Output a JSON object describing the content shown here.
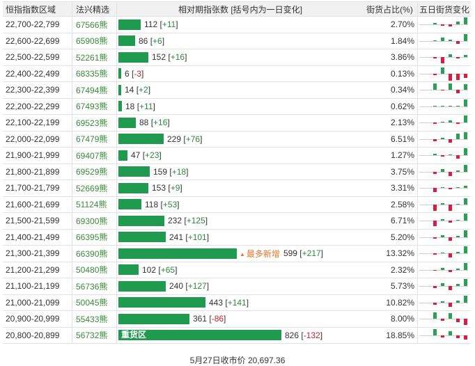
{
  "colors": {
    "bar": "#1f9a4f",
    "positive": "#2a8a3a",
    "negative": "#c0262d",
    "spark_up": "#2aa052",
    "spark_down": "#d81e3c",
    "hint": "#e9742b"
  },
  "header": {
    "range": "恒指指数区域",
    "code": "法兴精选",
    "bar": "相对期指张数 [括号内为一日变化]",
    "pct": "街货占比(%)",
    "spark": "五日街货变化"
  },
  "max_value": 826,
  "rows": [
    {
      "range": "22,700-22,799",
      "code": "67566熊",
      "value": 112,
      "delta": "+11",
      "pct": "2.70%",
      "spark": [
        0.2,
        -0.2,
        -0.3,
        0.4,
        1.0
      ]
    },
    {
      "range": "22,600-22,699",
      "code": "65908熊",
      "value": 86,
      "delta": "+6",
      "pct": "1.84%",
      "spark": [
        0.1,
        0.5,
        0.2,
        -0.4,
        1.0
      ]
    },
    {
      "range": "22,500-22,599",
      "code": "52261熊",
      "value": 152,
      "delta": "+16",
      "pct": "3.86%",
      "spark": [
        -0.2,
        -0.9,
        0.4,
        -0.2,
        0.3
      ]
    },
    {
      "range": "22,400-22,499",
      "code": "68335熊",
      "value": 6,
      "delta": "-3",
      "pct": "0.13%",
      "spark": [
        -0.2,
        0.9,
        -1.0,
        -0.9,
        -0.6
      ]
    },
    {
      "range": "22,300-22,399",
      "code": "67494熊",
      "value": 14,
      "delta": "+2",
      "pct": "0.34%",
      "spark": [
        0.9,
        -0.1,
        0.9,
        -0.5,
        0.8
      ]
    },
    {
      "range": "22,200-22,299",
      "code": "67493熊",
      "value": 18,
      "delta": "+11",
      "pct": "0.62%",
      "spark": [
        0.0,
        0.0,
        0.0,
        0.1,
        1.0
      ]
    },
    {
      "range": "22,100-22,199",
      "code": "69523熊",
      "value": 88,
      "delta": "+16",
      "pct": "2.13%",
      "spark": [
        -0.2,
        0.0,
        0.3,
        -0.2,
        1.0
      ]
    },
    {
      "range": "22,000-22,099",
      "code": "67479熊",
      "value": 229,
      "delta": "+76",
      "pct": "6.51%",
      "spark": [
        -0.3,
        0.2,
        -0.5,
        0.8,
        1.0
      ]
    },
    {
      "range": "21,900-21,999",
      "code": "69407熊",
      "value": 47,
      "delta": "+23",
      "pct": "1.27%",
      "spark": [
        0.2,
        -0.2,
        0.1,
        -0.5,
        1.0
      ]
    },
    {
      "range": "21,800-21,899",
      "code": "69529熊",
      "value": 159,
      "delta": "+18",
      "pct": "3.75%",
      "spark": [
        -0.3,
        0.4,
        -0.6,
        0.2,
        1.0
      ]
    },
    {
      "range": "21,700-21,799",
      "code": "52669熊",
      "value": 153,
      "delta": "+9",
      "pct": "3.31%",
      "spark": [
        -0.6,
        0.1,
        -0.2,
        0.1,
        0.3
      ]
    },
    {
      "range": "21,600-21,699",
      "code": "51124熊",
      "value": 118,
      "delta": "+53",
      "pct": "2.58%",
      "spark": [
        -0.9,
        0.2,
        -0.9,
        0.1,
        0.9
      ]
    },
    {
      "range": "21,500-21,599",
      "code": "69300熊",
      "value": 232,
      "delta": "+125",
      "pct": "6.71%",
      "spark": [
        -0.8,
        0.2,
        -0.3,
        0.1,
        1.0
      ]
    },
    {
      "range": "21,400-21,499",
      "code": "66395熊",
      "value": 241,
      "delta": "+101",
      "pct": "5.20%",
      "spark": [
        -0.2,
        0.3,
        -0.5,
        0.2,
        1.0
      ]
    },
    {
      "range": "21,300-21,399",
      "code": "66390熊",
      "value": 599,
      "delta": "+217",
      "pct": "13.32%",
      "spark": [
        -0.2,
        0.1,
        -0.6,
        0.2,
        1.0
      ],
      "hint": "最多新增",
      "hint_icon": "▲"
    },
    {
      "range": "21,200-21,299",
      "code": "50480熊",
      "value": 102,
      "delta": "+65",
      "pct": "2.32%",
      "spark": [
        -0.1,
        0.3,
        -0.3,
        0.2,
        1.0
      ]
    },
    {
      "range": "21,100-21,199",
      "code": "56736熊",
      "value": 240,
      "delta": "+127",
      "pct": "5.73%",
      "spark": [
        -0.3,
        0.4,
        -0.6,
        0.3,
        1.0
      ]
    },
    {
      "range": "21,000-21,099",
      "code": "50045熊",
      "value": 443,
      "delta": "+141",
      "pct": "10.82%",
      "spark": [
        -0.3,
        0.2,
        -0.6,
        0.3,
        1.0
      ]
    },
    {
      "range": "20,900-20,999",
      "code": "55433熊",
      "value": 361,
      "delta": "-86",
      "pct": "8.00%",
      "spark": [
        0.9,
        -0.3,
        0.8,
        -0.5,
        -0.9
      ]
    },
    {
      "range": "20,800-20,899",
      "code": "56732熊",
      "value": 826,
      "delta": "-132",
      "pct": "18.85%",
      "spark": [
        0.9,
        -0.3,
        0.6,
        -0.4,
        -0.6
      ],
      "bar_label": "重货区"
    }
  ],
  "footer": "5月27日收市价 20,697.36"
}
